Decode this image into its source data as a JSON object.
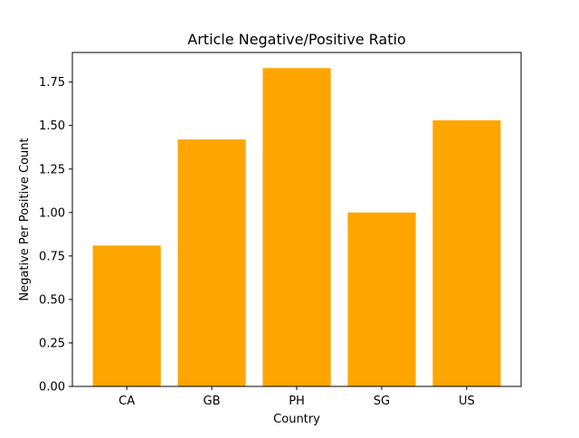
{
  "chart_data": {
    "type": "bar",
    "title": "Article Negative/Positive Ratio",
    "xlabel": "Country",
    "ylabel": "Negative Per Positive Count",
    "categories": [
      "CA",
      "GB",
      "PH",
      "SG",
      "US"
    ],
    "values": [
      0.81,
      1.42,
      1.83,
      1.0,
      1.53
    ],
    "ylim": [
      0,
      1.92
    ],
    "yticks": [
      0.0,
      0.25,
      0.5,
      0.75,
      1.0,
      1.25,
      1.5,
      1.75
    ],
    "ytick_labels": [
      "0.00",
      "0.25",
      "0.50",
      "0.75",
      "1.00",
      "1.25",
      "1.50",
      "1.75"
    ],
    "bar_color": "#ffa500",
    "grid": false,
    "legend": false
  }
}
